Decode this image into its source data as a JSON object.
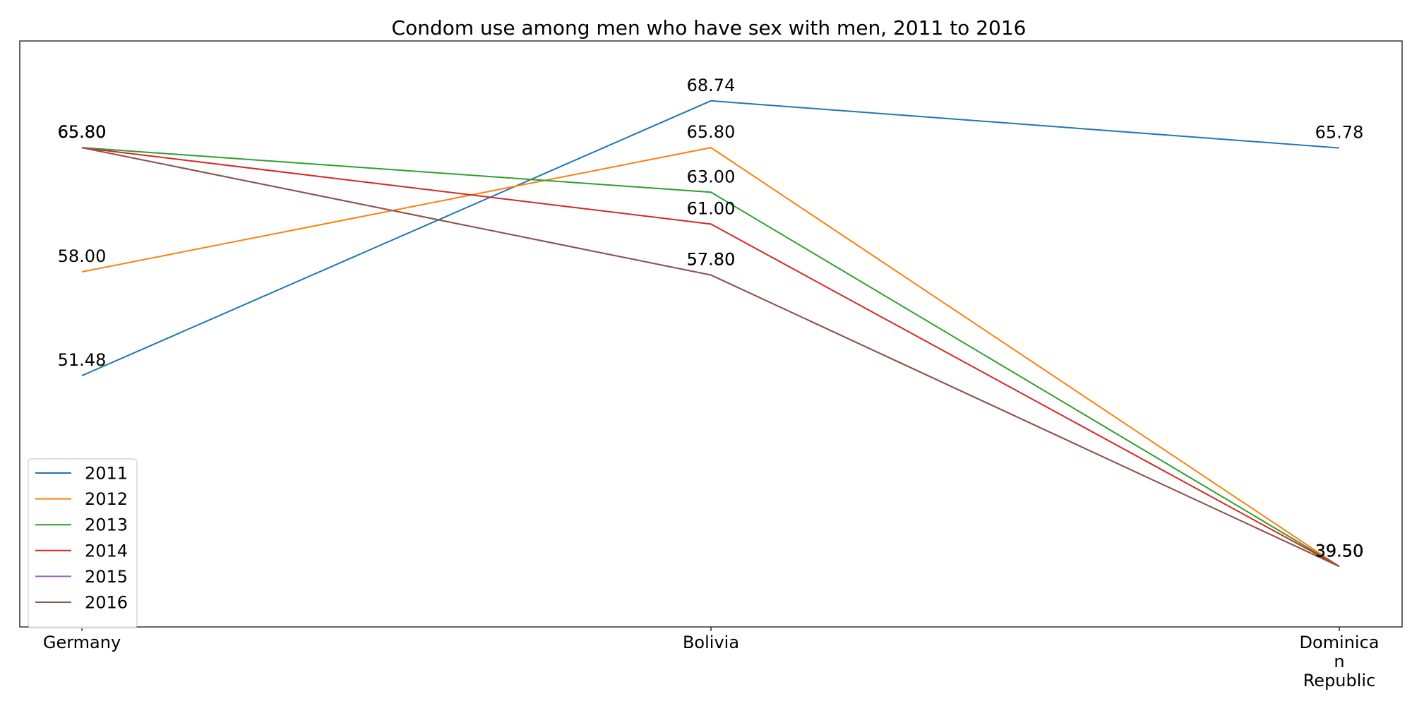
{
  "chart_data": {
    "type": "line",
    "title": "Condom use among men who have sex with men, 2011 to 2016",
    "xlabel": "",
    "ylabel": "",
    "categories": [
      "Germany",
      "Bolivia",
      "Dominican Republic"
    ],
    "category_tick_lines": [
      [
        "Germany"
      ],
      [
        "Bolivia"
      ],
      [
        "Dominica",
        "n",
        "Republic"
      ]
    ],
    "ylim": [
      35.7,
      72.5
    ],
    "grid": false,
    "legend_position": "lower-left",
    "series": [
      {
        "name": "2011",
        "color": "#1f77b4",
        "values": [
          51.48,
          68.74,
          65.78
        ]
      },
      {
        "name": "2012",
        "color": "#ff7f0e",
        "values": [
          58.0,
          65.8,
          39.5
        ]
      },
      {
        "name": "2013",
        "color": "#2ca02c",
        "values": [
          65.8,
          63.0,
          39.5
        ]
      },
      {
        "name": "2014",
        "color": "#d62728",
        "values": [
          65.8,
          61.0,
          39.5
        ]
      },
      {
        "name": "2015",
        "color": "#9467bd",
        "values": [
          65.8,
          57.8,
          39.5
        ]
      },
      {
        "name": "2016",
        "color": "#8c564b",
        "values": [
          65.8,
          57.8,
          39.5
        ]
      }
    ]
  }
}
